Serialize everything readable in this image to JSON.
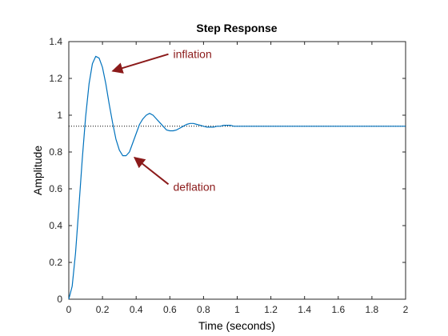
{
  "chart_data": {
    "type": "line",
    "title": "Step Response",
    "xlabel": "Time (seconds)",
    "ylabel": "Amplitude",
    "xlim": [
      0,
      2
    ],
    "ylim": [
      0,
      1.4
    ],
    "xticks": [
      "0",
      "0.2",
      "0.4",
      "0.6",
      "0.8",
      "1",
      "1.2",
      "1.4",
      "1.6",
      "1.8",
      "2"
    ],
    "yticks": [
      "0",
      "0.2",
      "0.4",
      "0.6",
      "0.8",
      "1",
      "1.2",
      "1.4"
    ],
    "grid": false,
    "steady_state": 0.94,
    "series": [
      {
        "color": "#0072BD",
        "x": [
          0,
          0.02,
          0.04,
          0.06,
          0.08,
          0.1,
          0.12,
          0.14,
          0.16,
          0.18,
          0.2,
          0.22,
          0.24,
          0.26,
          0.28,
          0.3,
          0.32,
          0.34,
          0.36,
          0.38,
          0.4,
          0.42,
          0.44,
          0.46,
          0.48,
          0.5,
          0.52,
          0.54,
          0.56,
          0.58,
          0.6,
          0.62,
          0.64,
          0.66,
          0.68,
          0.7,
          0.72,
          0.74,
          0.76,
          0.78,
          0.8,
          0.82,
          0.84,
          0.86,
          0.88,
          0.9,
          0.92,
          0.94,
          0.96,
          0.98,
          1.0,
          1.02,
          1.04,
          1.06,
          1.08,
          1.1,
          1.12,
          1.14,
          1.16,
          1.18,
          1.2,
          1.3,
          1.4,
          1.5,
          1.6,
          1.7,
          1.8,
          1.9,
          2.0
        ],
        "y": [
          0,
          0.07,
          0.25,
          0.5,
          0.76,
          0.99,
          1.17,
          1.28,
          1.32,
          1.31,
          1.26,
          1.17,
          1.06,
          0.96,
          0.87,
          0.81,
          0.78,
          0.78,
          0.8,
          0.85,
          0.9,
          0.95,
          0.98,
          1.0,
          1.01,
          1.0,
          0.98,
          0.96,
          0.94,
          0.92,
          0.915,
          0.915,
          0.92,
          0.93,
          0.94,
          0.95,
          0.955,
          0.955,
          0.95,
          0.945,
          0.94,
          0.935,
          0.935,
          0.935,
          0.94,
          0.94,
          0.945,
          0.945,
          0.945,
          0.94,
          0.94,
          0.94,
          0.94,
          0.94,
          0.94,
          0.94,
          0.94,
          0.94,
          0.94,
          0.94,
          0.94,
          0.94,
          0.94,
          0.94,
          0.94,
          0.94,
          0.94,
          0.94,
          0.94
        ]
      }
    ],
    "annotations": [
      {
        "text": "inflation",
        "color": "#8B1A1A",
        "arrow_to": [
          0.26,
          1.24
        ],
        "text_at": [
          0.62,
          1.31
        ]
      },
      {
        "text": "deflation",
        "color": "#8B1A1A",
        "arrow_to": [
          0.39,
          0.77
        ],
        "text_at": [
          0.62,
          0.59
        ]
      }
    ]
  }
}
